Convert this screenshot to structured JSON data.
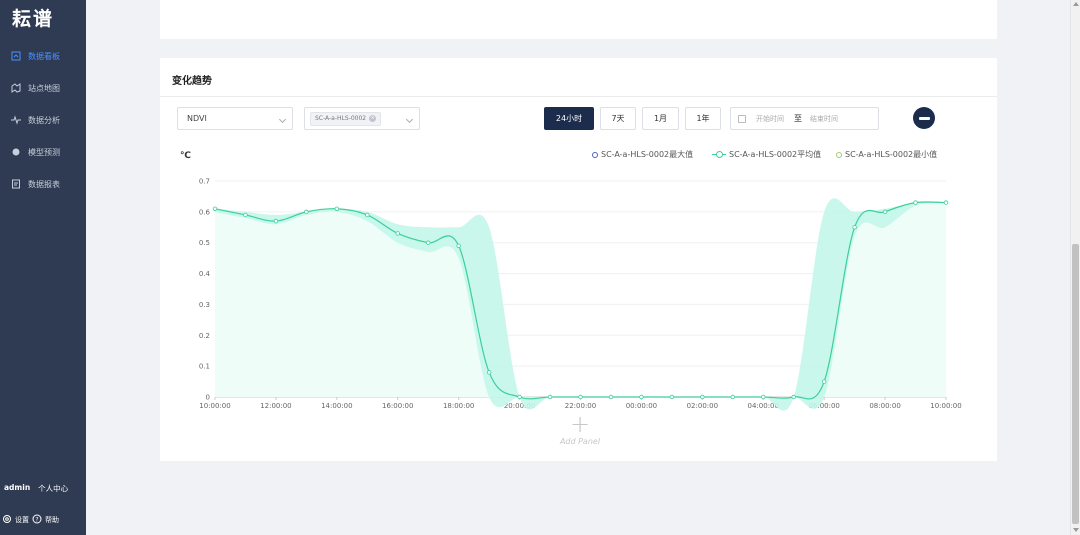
{
  "app": {
    "logo": "耘谱"
  },
  "sidebar": {
    "items": [
      {
        "label": "数据看板",
        "icon": "dashboard-icon",
        "active": true
      },
      {
        "label": "站点地图",
        "icon": "map-icon",
        "active": false
      },
      {
        "label": "数据分析",
        "icon": "analysis-icon",
        "active": false
      },
      {
        "label": "模型预测",
        "icon": "model-icon",
        "active": false
      },
      {
        "label": "数据报表",
        "icon": "report-icon",
        "active": false
      }
    ],
    "user": {
      "name": "admin",
      "center": "个人中心"
    },
    "bottom": {
      "settings": "设置",
      "help": "帮助"
    }
  },
  "panel": {
    "title": "变化趋势",
    "metric_select": {
      "value": "NDVI"
    },
    "station_select": {
      "tag": "SC-A-a-HLS-0002"
    },
    "ranges": [
      {
        "label": "24小时",
        "active": true
      },
      {
        "label": "7天",
        "active": false
      },
      {
        "label": "1月",
        "active": false
      },
      {
        "label": "1年",
        "active": false
      }
    ],
    "date_range": {
      "start_placeholder": "开始时间",
      "separator": "至",
      "end_placeholder": "结束时间"
    },
    "add_panel": "Add Panel"
  },
  "colors": {
    "accent": "#4a90ff",
    "dark": "#1c2c4c",
    "max_series": "#4b5fc9",
    "avg_series": "#3ccf9a",
    "min_series": "#9bd06a",
    "band": "#c3f6ea"
  },
  "chart_data": {
    "type": "line",
    "unit": "℃",
    "ylim": [
      0,
      0.7
    ],
    "yticks": [
      "0",
      "0.1",
      "0.2",
      "0.3",
      "0.4",
      "0.5",
      "0.6",
      "0.7"
    ],
    "x": [
      "10:00:00",
      "11:00:00",
      "12:00:00",
      "13:00:00",
      "14:00:00",
      "15:00:00",
      "16:00:00",
      "17:00:00",
      "18:00:00",
      "19:00:00",
      "20:00:00",
      "21:00:00",
      "22:00:00",
      "23:00:00",
      "00:00:00",
      "01:00:00",
      "02:00:00",
      "03:00:00",
      "04:00:00",
      "05:00:00",
      "06:00:00",
      "07:00:00",
      "08:00:00",
      "09:00:00",
      "10:00:00"
    ],
    "xticks": [
      "10:00:00",
      "12:00:00",
      "14:00:00",
      "16:00:00",
      "18:00:00",
      "20:00:00",
      "22:00:00",
      "00:00:00",
      "02:00:00",
      "04:00:00",
      "06:00:00",
      "08:00:00",
      "10:00:00"
    ],
    "series": [
      {
        "name": "SC-A-a-HLS-0002最大值",
        "values": [
          0.61,
          0.6,
          0.59,
          0.6,
          0.61,
          0.6,
          0.56,
          0.55,
          0.55,
          0.55,
          0.0,
          0.0,
          0.0,
          0.0,
          0.0,
          0.0,
          0.0,
          0.0,
          0.0,
          0.0,
          0.6,
          0.6,
          0.61,
          0.63,
          0.63
        ]
      },
      {
        "name": "SC-A-a-HLS-0002平均值",
        "values": [
          0.61,
          0.59,
          0.57,
          0.6,
          0.61,
          0.59,
          0.53,
          0.5,
          0.49,
          0.08,
          0.0,
          0.0,
          0.0,
          0.0,
          0.0,
          0.0,
          0.0,
          0.0,
          0.0,
          0.0,
          0.05,
          0.55,
          0.6,
          0.63,
          0.63
        ]
      },
      {
        "name": "SC-A-a-HLS-0002最小值",
        "values": [
          0.6,
          0.58,
          0.56,
          0.59,
          0.6,
          0.57,
          0.5,
          0.47,
          0.45,
          0.0,
          0.0,
          0.0,
          0.0,
          0.0,
          0.0,
          0.0,
          0.0,
          0.0,
          0.0,
          0.0,
          0.0,
          0.52,
          0.55,
          0.62,
          0.63
        ]
      }
    ],
    "legend": "top-right",
    "grid": true
  }
}
